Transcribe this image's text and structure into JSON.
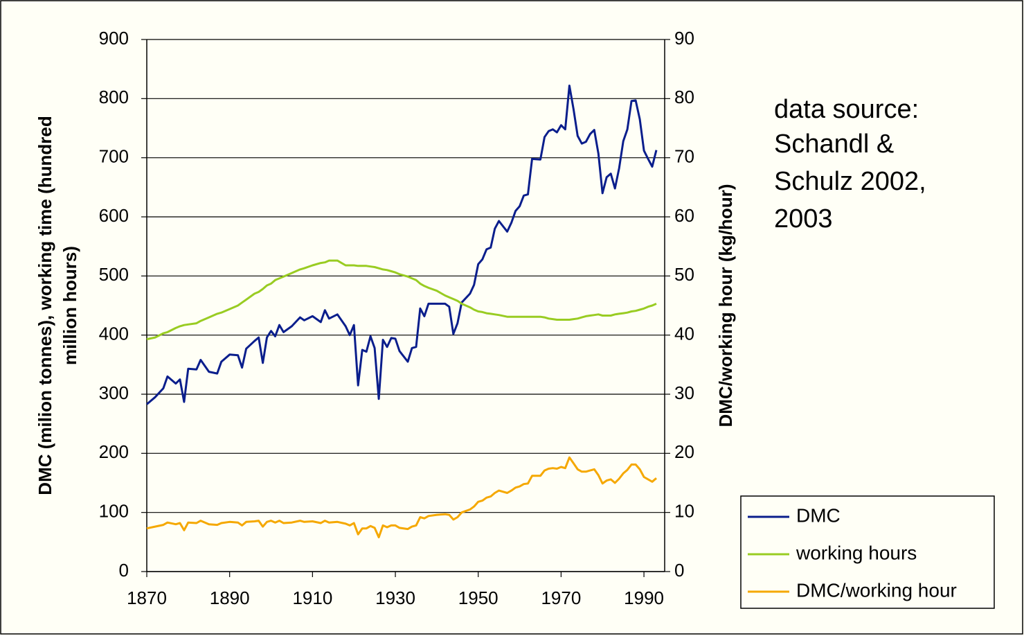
{
  "chart_data": {
    "type": "line",
    "ylabel": [
      "DMC (milion tonnes), working time (hundred",
      "million hours)"
    ],
    "y2label": "DMC/working hour (kg/hour)",
    "annotation": [
      "data source:",
      "Schandl &",
      "Schulz 2002,",
      "2003"
    ],
    "x": [
      1870,
      1872,
      1874,
      1875,
      1877,
      1878,
      1879,
      1880,
      1882,
      1883,
      1885,
      1887,
      1888,
      1890,
      1892,
      1893,
      1894,
      1896,
      1897,
      1898,
      1899,
      1900,
      1901,
      1902,
      1903,
      1905,
      1907,
      1908,
      1910,
      1912,
      1913,
      1914,
      1916,
      1918,
      1919,
      1920,
      1921,
      1922,
      1923,
      1924,
      1925,
      1926,
      1927,
      1928,
      1929,
      1930,
      1931,
      1933,
      1934,
      1935,
      1936,
      1937,
      1938,
      1940,
      1942,
      1943,
      1944,
      1945,
      1946,
      1948,
      1949,
      1950,
      1951,
      1952,
      1953,
      1954,
      1955,
      1957,
      1958,
      1959,
      1960,
      1961,
      1962,
      1963,
      1965,
      1966,
      1967,
      1968,
      1969,
      1970,
      1971,
      1972,
      1973,
      1974,
      1975,
      1976,
      1977,
      1978,
      1979,
      1980,
      1981,
      1982,
      1983,
      1984,
      1985,
      1986,
      1987,
      1988,
      1989,
      1990,
      1991,
      1992,
      1993
    ],
    "series": [
      {
        "name": "DMC",
        "color": "#0a1e8c",
        "values": [
          283,
          295,
          310,
          330,
          318,
          325,
          287,
          343,
          342,
          358,
          338,
          335,
          355,
          367,
          366,
          345,
          377,
          390,
          396,
          353,
          396,
          407,
          398,
          417,
          405,
          415,
          430,
          425,
          432,
          422,
          442,
          428,
          435,
          415,
          400,
          417,
          315,
          375,
          372,
          398,
          378,
          292,
          392,
          380,
          395,
          394,
          373,
          355,
          378,
          380,
          445,
          432,
          453,
          453,
          453,
          448,
          402,
          420,
          455,
          470,
          485,
          520,
          528,
          545,
          548,
          580,
          593,
          575,
          590,
          610,
          618,
          636,
          638,
          698,
          697,
          735,
          745,
          748,
          743,
          755,
          748,
          822,
          782,
          737,
          724,
          727,
          740,
          747,
          707,
          640,
          667,
          673,
          648,
          682,
          728,
          748,
          796,
          797,
          765,
          712,
          698,
          685,
          713
        ]
      },
      {
        "name": "working hours",
        "color": "#99cc22",
        "values": [
          393,
          396,
          403,
          405,
          412,
          415,
          417,
          418,
          420,
          424,
          430,
          436,
          438,
          444,
          450,
          455,
          460,
          470,
          473,
          478,
          484,
          487,
          493,
          496,
          499,
          505,
          511,
          513,
          518,
          522,
          523,
          526,
          526,
          518,
          518,
          518,
          517,
          517,
          517,
          516,
          515,
          513,
          511,
          510,
          508,
          506,
          503,
          499,
          496,
          493,
          487,
          483,
          480,
          475,
          467,
          464,
          461,
          458,
          453,
          447,
          443,
          440,
          439,
          437,
          436,
          435,
          434,
          431,
          431,
          431,
          431,
          431,
          431,
          431,
          431,
          430,
          428,
          427,
          426,
          426,
          426,
          426,
          427,
          428,
          430,
          432,
          433,
          434,
          435,
          433,
          433,
          433,
          435,
          436,
          437,
          438,
          440,
          441,
          443,
          445,
          448,
          450,
          453
        ]
      },
      {
        "name": "DMC/working hour",
        "color": "#f5a800",
        "axis": "y2",
        "values": [
          7.3,
          7.6,
          7.9,
          8.3,
          8.0,
          8.2,
          7.0,
          8.3,
          8.2,
          8.6,
          8.0,
          7.9,
          8.2,
          8.4,
          8.3,
          7.8,
          8.4,
          8.5,
          8.6,
          7.6,
          8.4,
          8.6,
          8.3,
          8.6,
          8.2,
          8.3,
          8.6,
          8.4,
          8.5,
          8.2,
          8.6,
          8.3,
          8.4,
          8.1,
          7.8,
          8.2,
          6.3,
          7.3,
          7.3,
          7.7,
          7.4,
          5.8,
          7.8,
          7.5,
          7.8,
          7.8,
          7.4,
          7.2,
          7.6,
          7.8,
          9.2,
          9.0,
          9.4,
          9.6,
          9.7,
          9.6,
          8.8,
          9.2,
          10.0,
          10.5,
          11.0,
          11.8,
          12.0,
          12.5,
          12.7,
          13.3,
          13.7,
          13.3,
          13.7,
          14.2,
          14.4,
          14.8,
          14.9,
          16.2,
          16.2,
          17.1,
          17.4,
          17.5,
          17.4,
          17.7,
          17.5,
          19.3,
          18.3,
          17.3,
          16.9,
          16.9,
          17.1,
          17.3,
          16.3,
          14.9,
          15.4,
          15.6,
          15.0,
          15.7,
          16.6,
          17.2,
          18.1,
          18.1,
          17.3,
          16.0,
          15.6,
          15.2,
          15.8
        ]
      }
    ],
    "xlim": [
      1870,
      1995
    ],
    "xticks": [
      1870,
      1890,
      1910,
      1930,
      1950,
      1970,
      1990
    ],
    "ylim": [
      0,
      900
    ],
    "yticks": [
      0,
      100,
      200,
      300,
      400,
      500,
      600,
      700,
      800,
      900
    ],
    "y2lim": [
      0,
      90
    ],
    "y2ticks": [
      0,
      10,
      20,
      30,
      40,
      50,
      60,
      70,
      80,
      90
    ],
    "grid": true,
    "legend": "lower right"
  }
}
